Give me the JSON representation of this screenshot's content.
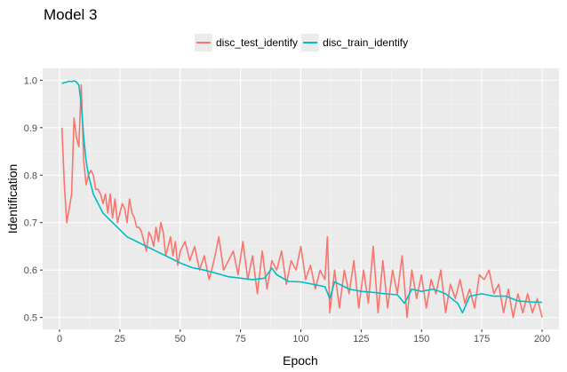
{
  "chart_data": {
    "type": "line",
    "title": "Model 3",
    "xlabel": "Epoch",
    "ylabel": "Identification",
    "xlim": [
      -7,
      207
    ],
    "ylim": [
      0.475,
      1.025
    ],
    "x_ticks": [
      0,
      25,
      50,
      75,
      100,
      125,
      150,
      175,
      200
    ],
    "y_ticks": [
      0.5,
      0.6,
      0.7,
      0.8,
      0.9,
      1.0
    ],
    "y_tick_labels": [
      "0.5",
      "0.6",
      "0.7",
      "0.8",
      "0.9",
      "1.0"
    ],
    "grid": true,
    "legend_position": "top",
    "series": [
      {
        "name": "disc_test_identify",
        "color": "#F8766D",
        "points": [
          [
            1,
            0.9
          ],
          [
            2,
            0.78
          ],
          [
            3,
            0.7
          ],
          [
            4,
            0.73
          ],
          [
            5,
            0.76
          ],
          [
            6,
            0.92
          ],
          [
            7,
            0.88
          ],
          [
            8,
            0.86
          ],
          [
            9,
            0.99
          ],
          [
            10,
            0.83
          ],
          [
            11,
            0.78
          ],
          [
            12,
            0.8
          ],
          [
            13,
            0.81
          ],
          [
            14,
            0.8
          ],
          [
            15,
            0.77
          ],
          [
            16,
            0.77
          ],
          [
            17,
            0.76
          ],
          [
            18,
            0.74
          ],
          [
            19,
            0.76
          ],
          [
            20,
            0.72
          ],
          [
            21,
            0.76
          ],
          [
            22,
            0.71
          ],
          [
            23,
            0.75
          ],
          [
            24,
            0.7
          ],
          [
            25,
            0.72
          ],
          [
            26,
            0.74
          ],
          [
            27,
            0.73
          ],
          [
            28,
            0.7
          ],
          [
            29,
            0.75
          ],
          [
            30,
            0.72
          ],
          [
            31,
            0.71
          ],
          [
            32,
            0.69
          ],
          [
            33,
            0.69
          ],
          [
            34,
            0.68
          ],
          [
            35,
            0.66
          ],
          [
            36,
            0.64
          ],
          [
            37,
            0.68
          ],
          [
            38,
            0.67
          ],
          [
            39,
            0.65
          ],
          [
            40,
            0.69
          ],
          [
            41,
            0.66
          ],
          [
            42,
            0.7
          ],
          [
            43,
            0.68
          ],
          [
            44,
            0.63
          ],
          [
            45,
            0.65
          ],
          [
            46,
            0.67
          ],
          [
            47,
            0.63
          ],
          [
            48,
            0.66
          ],
          [
            49,
            0.61
          ],
          [
            50,
            0.64
          ],
          [
            52,
            0.66
          ],
          [
            54,
            0.62
          ],
          [
            56,
            0.65
          ],
          [
            58,
            0.6
          ],
          [
            60,
            0.63
          ],
          [
            62,
            0.58
          ],
          [
            64,
            0.62
          ],
          [
            66,
            0.67
          ],
          [
            68,
            0.6
          ],
          [
            70,
            0.62
          ],
          [
            72,
            0.64
          ],
          [
            74,
            0.59
          ],
          [
            76,
            0.66
          ],
          [
            78,
            0.58
          ],
          [
            80,
            0.63
          ],
          [
            82,
            0.55
          ],
          [
            84,
            0.64
          ],
          [
            86,
            0.56
          ],
          [
            88,
            0.62
          ],
          [
            90,
            0.6
          ],
          [
            92,
            0.64
          ],
          [
            94,
            0.57
          ],
          [
            96,
            0.62
          ],
          [
            98,
            0.6
          ],
          [
            100,
            0.65
          ],
          [
            102,
            0.58
          ],
          [
            104,
            0.61
          ],
          [
            106,
            0.56
          ],
          [
            108,
            0.6
          ],
          [
            110,
            0.58
          ],
          [
            111,
            0.67
          ],
          [
            112,
            0.51
          ],
          [
            114,
            0.6
          ],
          [
            116,
            0.52
          ],
          [
            118,
            0.6
          ],
          [
            120,
            0.55
          ],
          [
            122,
            0.62
          ],
          [
            124,
            0.52
          ],
          [
            126,
            0.6
          ],
          [
            128,
            0.53
          ],
          [
            130,
            0.65
          ],
          [
            132,
            0.51
          ],
          [
            134,
            0.62
          ],
          [
            136,
            0.52
          ],
          [
            138,
            0.6
          ],
          [
            140,
            0.55
          ],
          [
            142,
            0.63
          ],
          [
            144,
            0.5
          ],
          [
            146,
            0.6
          ],
          [
            148,
            0.54
          ],
          [
            150,
            0.59
          ],
          [
            152,
            0.52
          ],
          [
            154,
            0.58
          ],
          [
            156,
            0.55
          ],
          [
            158,
            0.6
          ],
          [
            160,
            0.51
          ],
          [
            162,
            0.57
          ],
          [
            164,
            0.54
          ],
          [
            166,
            0.58
          ],
          [
            168,
            0.53
          ],
          [
            170,
            0.56
          ],
          [
            172,
            0.52
          ],
          [
            174,
            0.59
          ],
          [
            176,
            0.58
          ],
          [
            178,
            0.6
          ],
          [
            180,
            0.55
          ],
          [
            182,
            0.57
          ],
          [
            184,
            0.51
          ],
          [
            186,
            0.56
          ],
          [
            188,
            0.5
          ],
          [
            190,
            0.55
          ],
          [
            192,
            0.51
          ],
          [
            194,
            0.55
          ],
          [
            196,
            0.51
          ],
          [
            198,
            0.54
          ],
          [
            200,
            0.5
          ]
        ]
      },
      {
        "name": "disc_train_identify",
        "color": "#00BFC4",
        "points": [
          [
            1,
            0.993
          ],
          [
            2,
            0.995
          ],
          [
            3,
            0.996
          ],
          [
            4,
            0.998
          ],
          [
            5,
            0.997
          ],
          [
            6,
            0.999
          ],
          [
            7,
            0.996
          ],
          [
            8,
            0.99
          ],
          [
            9,
            0.95
          ],
          [
            10,
            0.88
          ],
          [
            11,
            0.83
          ],
          [
            12,
            0.8
          ],
          [
            13,
            0.78
          ],
          [
            14,
            0.76
          ],
          [
            15,
            0.75
          ],
          [
            16,
            0.74
          ],
          [
            17,
            0.73
          ],
          [
            18,
            0.72
          ],
          [
            19,
            0.715
          ],
          [
            20,
            0.71
          ],
          [
            22,
            0.7
          ],
          [
            24,
            0.69
          ],
          [
            26,
            0.68
          ],
          [
            28,
            0.67
          ],
          [
            30,
            0.665
          ],
          [
            32,
            0.66
          ],
          [
            34,
            0.655
          ],
          [
            36,
            0.65
          ],
          [
            38,
            0.645
          ],
          [
            40,
            0.64
          ],
          [
            42,
            0.635
          ],
          [
            44,
            0.63
          ],
          [
            46,
            0.625
          ],
          [
            48,
            0.62
          ],
          [
            50,
            0.615
          ],
          [
            55,
            0.605
          ],
          [
            60,
            0.6
          ],
          [
            65,
            0.593
          ],
          [
            70,
            0.586
          ],
          [
            75,
            0.583
          ],
          [
            80,
            0.58
          ],
          [
            85,
            0.583
          ],
          [
            88,
            0.604
          ],
          [
            90,
            0.59
          ],
          [
            95,
            0.576
          ],
          [
            100,
            0.575
          ],
          [
            105,
            0.57
          ],
          [
            110,
            0.565
          ],
          [
            112,
            0.54
          ],
          [
            114,
            0.575
          ],
          [
            118,
            0.565
          ],
          [
            120,
            0.56
          ],
          [
            125,
            0.555
          ],
          [
            130,
            0.553
          ],
          [
            135,
            0.55
          ],
          [
            140,
            0.548
          ],
          [
            143,
            0.53
          ],
          [
            146,
            0.56
          ],
          [
            150,
            0.555
          ],
          [
            155,
            0.56
          ],
          [
            160,
            0.55
          ],
          [
            165,
            0.53
          ],
          [
            167,
            0.51
          ],
          [
            170,
            0.545
          ],
          [
            175,
            0.55
          ],
          [
            180,
            0.545
          ],
          [
            185,
            0.545
          ],
          [
            190,
            0.535
          ],
          [
            195,
            0.533
          ],
          [
            200,
            0.532
          ]
        ]
      }
    ]
  }
}
